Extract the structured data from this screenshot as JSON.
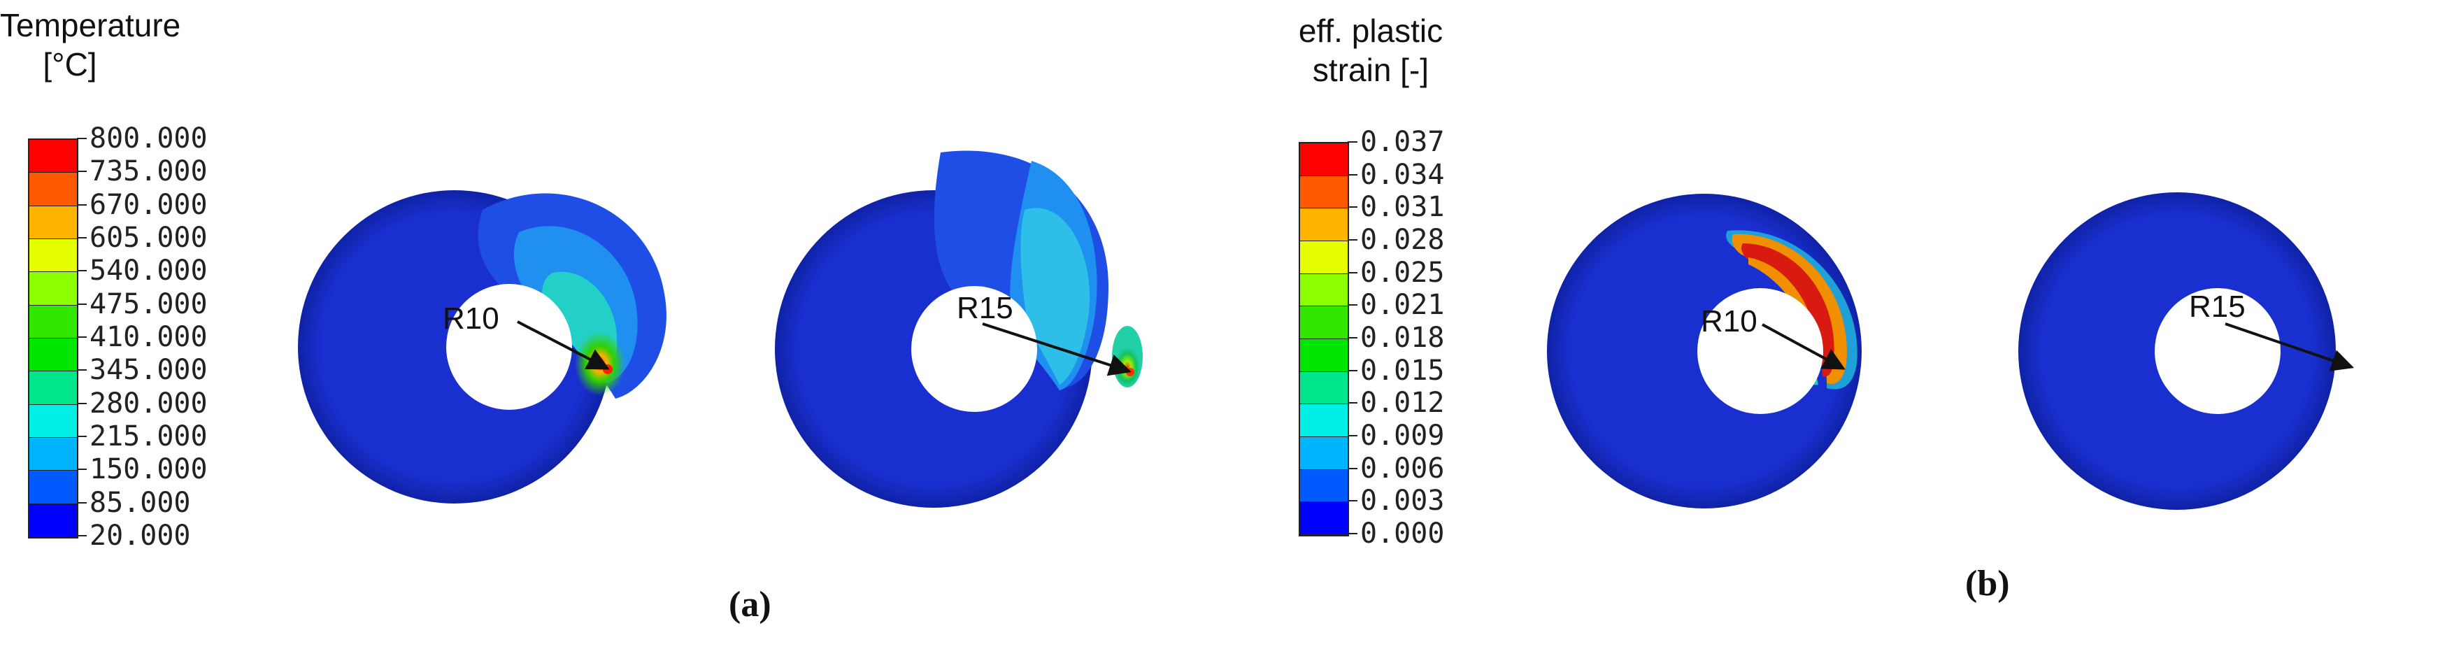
{
  "panels": [
    {
      "id": "a",
      "label": "(a)",
      "legend": {
        "title_line1": "Temperature",
        "title_line2": "[°C]",
        "ticks": [
          "800.000",
          "735.000",
          "670.000",
          "605.000",
          "540.000",
          "475.000",
          "410.000",
          "345.000",
          "280.000",
          "215.000",
          "150.000",
          "85.000",
          "20.000"
        ],
        "colors": [
          "#ff0000",
          "#ff5a00",
          "#ffb400",
          "#e6ff00",
          "#8cff00",
          "#32e600",
          "#00e600",
          "#00e68c",
          "#00f0e6",
          "#00b4ff",
          "#005aff",
          "#0000ff"
        ]
      },
      "disks": [
        {
          "label": "R10"
        },
        {
          "label": "R15"
        }
      ]
    },
    {
      "id": "b",
      "label": "(b)",
      "legend": {
        "title_line1": "eff. plastic",
        "title_line2": "strain [-]",
        "ticks": [
          "0.037",
          "0.034",
          "0.031",
          "0.028",
          "0.025",
          "0.021",
          "0.018",
          "0.015",
          "0.012",
          "0.009",
          "0.006",
          "0.003",
          "0.000"
        ],
        "colors": [
          "#ff0000",
          "#ff5a00",
          "#ffb400",
          "#e6ff00",
          "#8cff00",
          "#32e600",
          "#00e600",
          "#00e68c",
          "#00f0e6",
          "#00b4ff",
          "#005aff",
          "#0000ff"
        ]
      },
      "disks": [
        {
          "label": "R10"
        },
        {
          "label": "R15"
        }
      ]
    }
  ],
  "colors": {
    "disk_base": "#1a2fd0",
    "disk_edge": "#1020a8"
  }
}
